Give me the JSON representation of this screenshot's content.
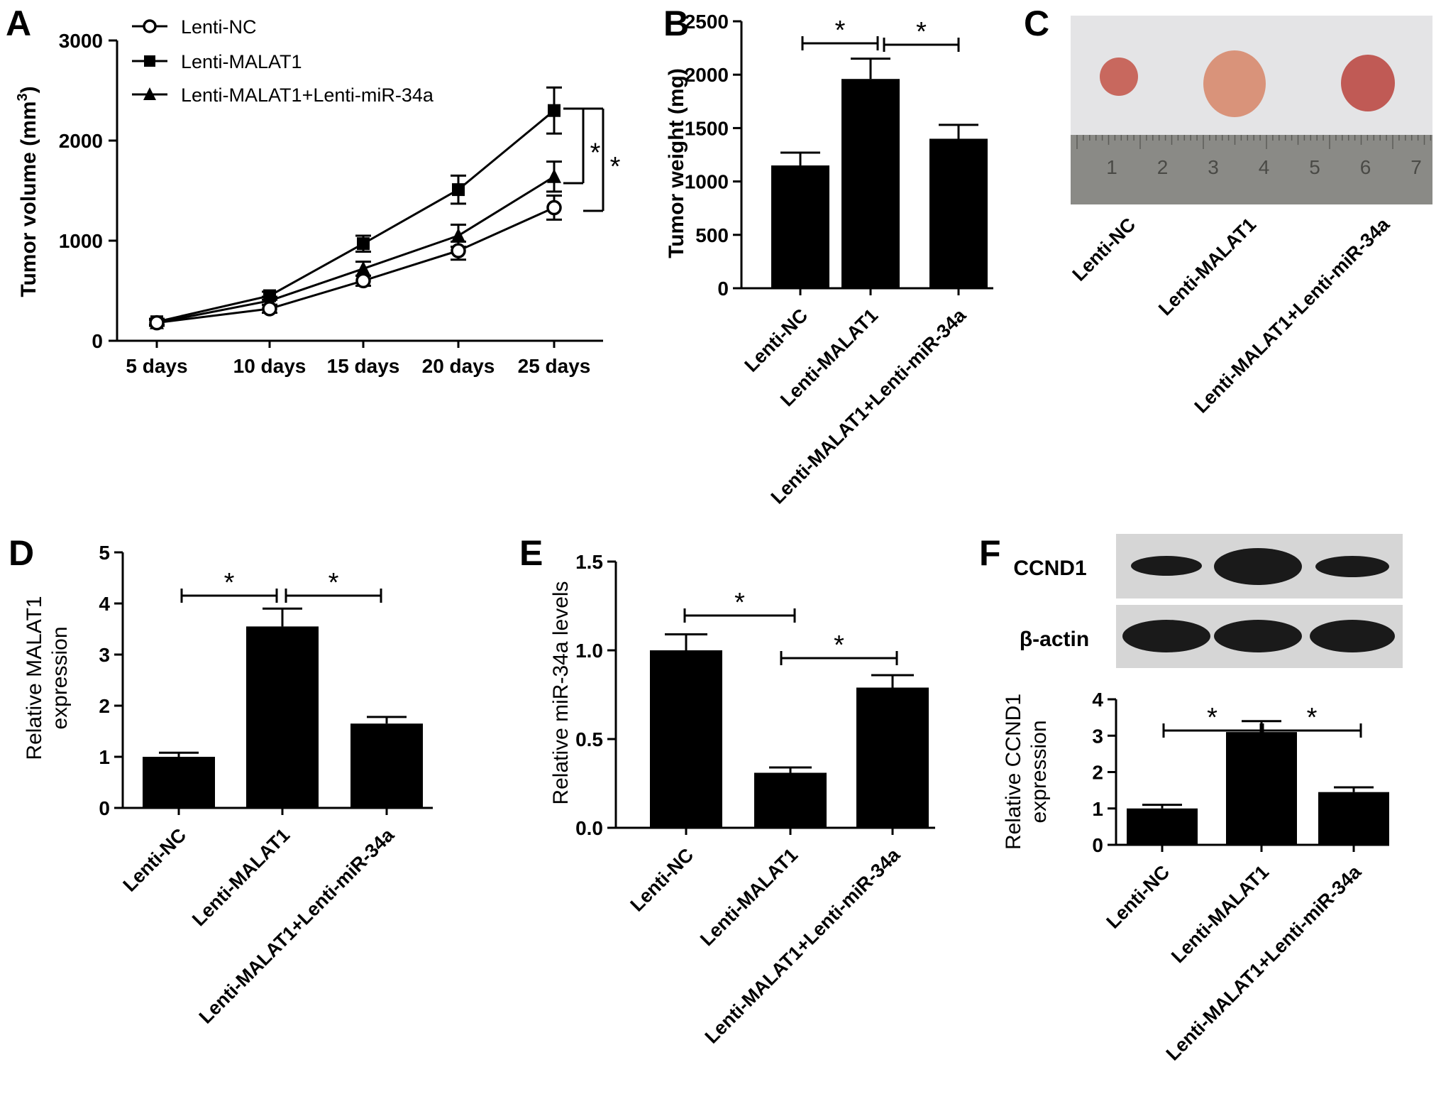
{
  "chart_data": [
    {
      "panel": "A",
      "type": "line",
      "ylabel": "Tumor volume (mm",
      "ylabel_sup": "3",
      "ylabel_end": ")",
      "categories": [
        "5 days",
        "10 days",
        "15 days",
        "20 days",
        "25 days"
      ],
      "yticks": [
        "0",
        "1000",
        "2000",
        "3000"
      ],
      "ylim": [
        0,
        3000
      ],
      "series": [
        {
          "name": "Lenti-NC",
          "marker": "open-circle",
          "values": [
            180,
            320,
            600,
            900,
            1330
          ],
          "errors": [
            30,
            40,
            50,
            90,
            120
          ]
        },
        {
          "name": "Lenti-MALAT1",
          "marker": "square",
          "values": [
            190,
            450,
            970,
            1510,
            2300
          ],
          "errors": [
            30,
            40,
            80,
            140,
            230
          ]
        },
        {
          "name": "Lenti-MALAT1+Lenti-miR-34a",
          "marker": "triangle",
          "values": [
            180,
            400,
            720,
            1050,
            1640
          ],
          "errors": [
            30,
            40,
            70,
            110,
            150
          ]
        }
      ],
      "significance": [
        "*",
        "*"
      ]
    },
    {
      "panel": "B",
      "type": "bar",
      "ylabel": "Tumor weight (mg)",
      "categories": [
        "Lenti-NC",
        "Lenti-MALAT1",
        "Lenti-MALAT1+Lenti-miR-34a"
      ],
      "values": [
        1150,
        1960,
        1400
      ],
      "errors": [
        120,
        190,
        130
      ],
      "yticks": [
        "0",
        "500",
        "1000",
        "1500",
        "2000",
        "2500"
      ],
      "ylim": [
        0,
        2500
      ],
      "significance": [
        "*",
        "*"
      ]
    },
    {
      "panel": "D",
      "type": "bar",
      "ylabel": "Relative MALAT1",
      "ylabel2": "expression",
      "categories": [
        "Lenti-NC",
        "Lenti-MALAT1",
        "Lenti-MALAT1+Lenti-miR-34a"
      ],
      "values": [
        1.0,
        3.55,
        1.65
      ],
      "errors": [
        0.08,
        0.35,
        0.13
      ],
      "yticks": [
        "0",
        "1",
        "2",
        "3",
        "4",
        "5"
      ],
      "ylim": [
        0,
        5
      ],
      "significance": [
        "*",
        "*"
      ]
    },
    {
      "panel": "E",
      "type": "bar",
      "ylabel": "Relative miR-34a levels",
      "categories": [
        "Lenti-NC",
        "Lenti-MALAT1",
        "Lenti-MALAT1+Lenti-miR-34a"
      ],
      "values": [
        1.0,
        0.31,
        0.79
      ],
      "errors": [
        0.09,
        0.03,
        0.07
      ],
      "yticks": [
        "0.0",
        "0.5",
        "1.0",
        "1.5"
      ],
      "ylim": [
        0,
        1.5
      ],
      "significance": [
        "*",
        "*"
      ]
    },
    {
      "panel": "F",
      "type": "bar",
      "ylabel": "Relative CCND1",
      "ylabel2": "expression",
      "categories": [
        "Lenti-NC",
        "Lenti-MALAT1",
        "Lenti-MALAT1+Lenti-miR-34a"
      ],
      "values": [
        1.0,
        3.1,
        1.45
      ],
      "errors": [
        0.1,
        0.3,
        0.13
      ],
      "yticks": [
        "0",
        "1",
        "2",
        "3",
        "4"
      ],
      "ylim": [
        0,
        4
      ],
      "significance": [
        "*",
        "*"
      ]
    }
  ],
  "panel_c": {
    "letter": "C",
    "ruler_numbers": [
      "1",
      "2",
      "3",
      "4",
      "5",
      "6",
      "7"
    ],
    "labels": [
      "Lenti-NC",
      "Lenti-MALAT1",
      "Lenti-MALAT1+Lenti-miR-34a"
    ]
  },
  "panel_f_blot": {
    "rows": [
      "CCND1",
      "β-actin"
    ]
  },
  "colors": {
    "bar": "#000000",
    "photo_bg": "#e4e4e6",
    "ruler": "#8a8a86",
    "blot_bg": "#d6d6d6",
    "band": "#1a1a1a"
  }
}
